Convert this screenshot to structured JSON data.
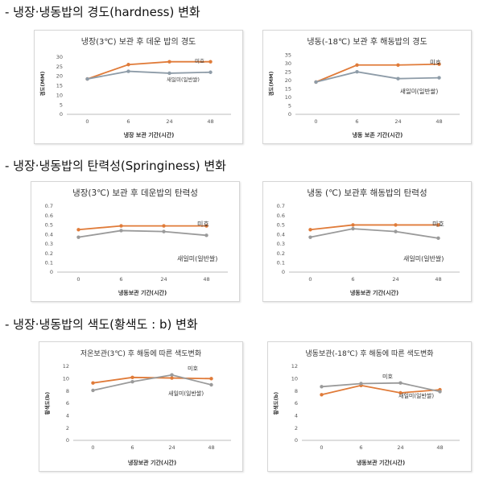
{
  "sections": [
    {
      "heading": "- 냉장·냉동밥의 경도(hardness) 변화"
    },
    {
      "heading": "- 냉장·냉동밥의 탄력성(Springiness) 변화"
    },
    {
      "heading": "- 냉장·냉동밥의 색도(황색도 : b) 변화"
    }
  ],
  "colors": {
    "miho": "#E07B39",
    "saeilmi": "#8E9CA8",
    "saeilmi_gray": "#9A9A9A"
  },
  "chart_data": [
    {
      "type": "line",
      "title": "냉장(3℃) 보관 후 데운 밥의 경도",
      "xlabel": "냉장 보관 기간(시간)",
      "ylabel": "경도(MM)",
      "categories": [
        "0",
        "6",
        "24",
        "48"
      ],
      "yticks": [
        "0",
        "5",
        "10",
        "15",
        "20",
        "25",
        "30"
      ],
      "ylim": [
        0,
        32
      ],
      "series": [
        {
          "name": "미호",
          "values": [
            18.5,
            26,
            27.5,
            27.5
          ],
          "color": "#E07B39"
        },
        {
          "name": "새일미(일반쌀)",
          "values": [
            18.5,
            22.5,
            21.5,
            22
          ],
          "color": "#8E9CA8"
        }
      ]
    },
    {
      "type": "line",
      "title": "냉동(-18℃) 보관 후 해동밥의 경도",
      "xlabel": "냉동 보존 기간(시간)",
      "ylabel": "경도(MM)",
      "categories": [
        "0",
        "6",
        "24",
        "48"
      ],
      "yticks": [
        "0",
        "5",
        "10",
        "15",
        "20",
        "25",
        "30",
        "35"
      ],
      "ylim": [
        0,
        36
      ],
      "series": [
        {
          "name": "미호",
          "values": [
            19,
            29,
            29,
            29.5
          ],
          "color": "#E07B39"
        },
        {
          "name": "새일미(일반쌀)",
          "values": [
            19,
            25,
            21,
            21.5
          ],
          "color": "#8E9CA8"
        }
      ]
    },
    {
      "type": "line",
      "title": "냉장(3℃) 보관 후 데운밥의 탄력성",
      "xlabel": "냉동보관 기간(시간)",
      "ylabel": "",
      "categories": [
        "0",
        "6",
        "24",
        "48"
      ],
      "yticks": [
        "0",
        "0.1",
        "0.2",
        "0.3",
        "0.4",
        "0.5",
        "0.6",
        "0.7"
      ],
      "ylim": [
        0,
        0.7
      ],
      "series": [
        {
          "name": "미호",
          "values": [
            0.45,
            0.49,
            0.49,
            0.49
          ],
          "color": "#E07B39"
        },
        {
          "name": "새일미(일반쌀)",
          "values": [
            0.37,
            0.44,
            0.43,
            0.39
          ],
          "color": "#9A9A9A"
        }
      ]
    },
    {
      "type": "line",
      "title": "냉동 (℃) 보관후 해동밥의 탄력성",
      "xlabel": "냉동보관 기간(시간)",
      "ylabel": "",
      "categories": [
        "0",
        "6",
        "24",
        "48"
      ],
      "yticks": [
        "0",
        "0.1",
        "0.2",
        "0.3",
        "0.4",
        "0.5",
        "0.6",
        "0.7"
      ],
      "ylim": [
        0,
        0.7
      ],
      "series": [
        {
          "name": "미호",
          "values": [
            0.45,
            0.5,
            0.5,
            0.5
          ],
          "color": "#E07B39"
        },
        {
          "name": "새일미(일반쌀)",
          "values": [
            0.37,
            0.46,
            0.43,
            0.36
          ],
          "color": "#9A9A9A"
        }
      ]
    },
    {
      "type": "line",
      "title": "저온보관(3℃) 후 해동에 따른 색도변화",
      "xlabel": "냉장보관 기간(시간)",
      "ylabel": "황색도(b)",
      "categories": [
        "0",
        "6",
        "24",
        "48"
      ],
      "yticks": [
        "0",
        "2",
        "4",
        "6",
        "8",
        "10",
        "12"
      ],
      "ylim": [
        0,
        12
      ],
      "series": [
        {
          "name": "미호",
          "values": [
            9.3,
            10.2,
            10.1,
            10
          ],
          "color": "#E07B39"
        },
        {
          "name": "새일미(일반쌀)",
          "values": [
            8.1,
            9.5,
            10.6,
            9
          ],
          "color": "#9A9A9A"
        }
      ]
    },
    {
      "type": "line",
      "title": "냉동보관(-18℃) 후 해동에 따른 색도변화",
      "xlabel": "냉동보관 기간(시간)",
      "ylabel": "황색도(b)",
      "categories": [
        "0",
        "6",
        "24",
        "48"
      ],
      "yticks": [
        "0",
        "2",
        "4",
        "6",
        "8",
        "10",
        "12"
      ],
      "ylim": [
        0,
        12
      ],
      "series": [
        {
          "name": "미호",
          "values": [
            7.4,
            8.9,
            7.7,
            8.2
          ],
          "color": "#E07B39"
        },
        {
          "name": "새일미(일반쌀)",
          "values": [
            8.7,
            9.2,
            9.3,
            7.9
          ],
          "color": "#9A9A9A"
        }
      ]
    }
  ]
}
